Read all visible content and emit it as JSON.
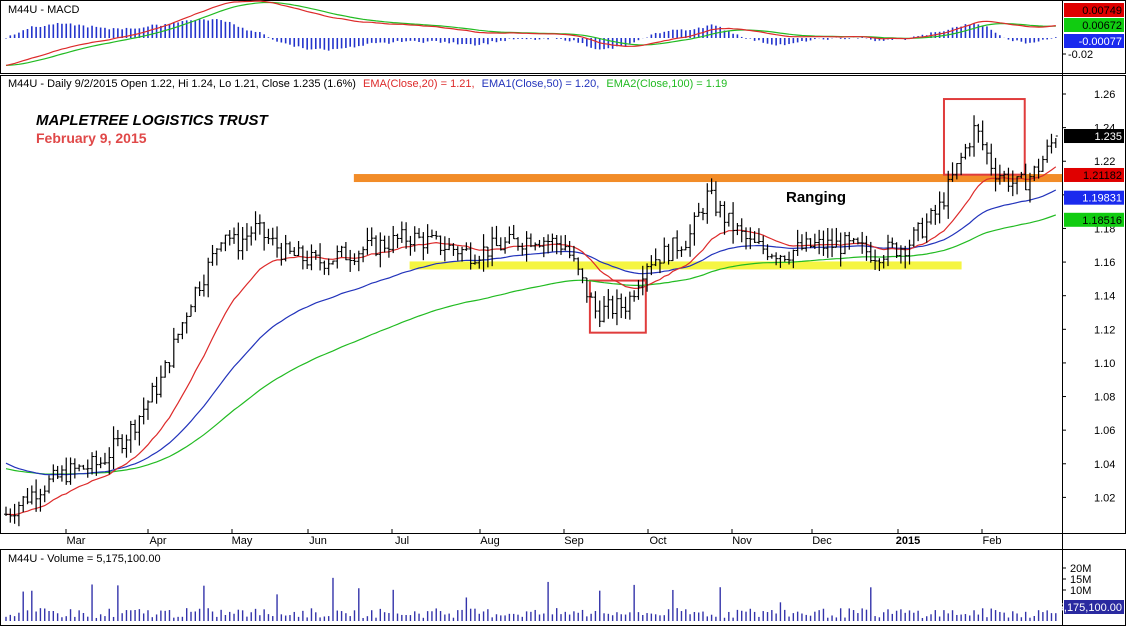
{
  "colors": {
    "bg": "#ffffff",
    "panel_border": "#000000",
    "price_bar": "#000000",
    "ema20": "#dd2a2a",
    "ema50": "#2233bb",
    "ema100": "#22bb22",
    "macd_hist": "#2233cc",
    "macd_line": "#dd2a2a",
    "signal_line": "#22bb22",
    "resistance": "#f28c28",
    "support": "#f5f542",
    "box": "#e03c3c",
    "volume": "#3333aa",
    "tag_red": "#e00000",
    "tag_green": "#11cc11",
    "tag_blue": "#1a2aee",
    "tag_black": "#000000",
    "tag_vol": "#2a2aa0"
  },
  "macd_panel": {
    "header": "M44U - MACD",
    "tags": [
      "0.00749",
      "0.00672",
      "-0.00077"
    ],
    "ticks": [
      "-0.02"
    ]
  },
  "price_panel": {
    "header_black": "M44U - Daily 9/2/2015 Open 1.22, Hi 1.24, Lo 1.21, Close 1.235 (1.6%)",
    "header_ema20": "EMA(Close,20) = 1.21,",
    "header_ema50": "EMA1(Close,50) = 1.20,",
    "header_ema100": "EMA2(Close,100) = 1.19",
    "title": "MAPLETREE LOGISTICS TRUST",
    "subtitle": "February 9, 2015",
    "annotation": "Ranging",
    "tags": {
      "close": "1.235",
      "ema20": "1.21182",
      "ema50": "1.19831",
      "ema100": "1.18516"
    }
  },
  "volume_panel": {
    "header": "M44U - Volume = 5,175,100.00",
    "ticks": [
      "20M",
      "15M",
      "10M"
    ],
    "tag": "5,175,100.00"
  },
  "chart_data": {
    "type": "line",
    "title": "MAPLETREE LOGISTICS TRUST",
    "subtitle": "February 9, 2015",
    "x_months": [
      "Mar",
      "Apr",
      "May",
      "Jun",
      "Jul",
      "Aug",
      "Sep",
      "Oct",
      "Nov",
      "Dec",
      "2015",
      "Feb"
    ],
    "ylim": [
      1.0,
      1.26
    ],
    "y_ticks": [
      "1.26",
      "1.24",
      "1.22",
      "1.20",
      "1.18",
      "1.16",
      "1.14",
      "1.12",
      "1.10",
      "1.08",
      "1.06",
      "1.04",
      "1.02"
    ],
    "price_anchors": [
      [
        0,
        1.01
      ],
      [
        0.5,
        1.025
      ],
      [
        1,
        1.035
      ],
      [
        1.5,
        1.04
      ],
      [
        2,
        1.06
      ],
      [
        2.5,
        1.09
      ],
      [
        3,
        1.14
      ],
      [
        3.3,
        1.16
      ],
      [
        3.5,
        1.18
      ],
      [
        3.7,
        1.17
      ],
      [
        4,
        1.18
      ],
      [
        4.5,
        1.165
      ],
      [
        5,
        1.16
      ],
      [
        5.5,
        1.165
      ],
      [
        6,
        1.17
      ],
      [
        6.5,
        1.175
      ],
      [
        7,
        1.17
      ],
      [
        7.5,
        1.165
      ],
      [
        8,
        1.17
      ],
      [
        8.5,
        1.175
      ],
      [
        9,
        1.17
      ],
      [
        9.5,
        1.13
      ],
      [
        10,
        1.135
      ],
      [
        10.3,
        1.16
      ],
      [
        10.6,
        1.165
      ],
      [
        11,
        1.175
      ],
      [
        11.3,
        1.2
      ],
      [
        11.6,
        1.185
      ],
      [
        12,
        1.17
      ],
      [
        12.5,
        1.165
      ],
      [
        13,
        1.17
      ],
      [
        13.5,
        1.17
      ],
      [
        14,
        1.165
      ],
      [
        14.5,
        1.17
      ],
      [
        15,
        1.19
      ],
      [
        15.3,
        1.215
      ],
      [
        15.6,
        1.24
      ],
      [
        15.9,
        1.215
      ],
      [
        16.3,
        1.205
      ],
      [
        16.6,
        1.215
      ],
      [
        16.9,
        1.235
      ]
    ],
    "series": [
      {
        "name": "EMA(Close,20)",
        "last": 1.21182
      },
      {
        "name": "EMA1(Close,50)",
        "last": 1.19831
      },
      {
        "name": "EMA2(Close,100)",
        "last": 1.18516
      }
    ],
    "last_close": 1.235,
    "resistance_level": 1.21,
    "support_level": 1.158,
    "boxes": [
      {
        "x0": 9.4,
        "x1": 10.3,
        "y0": 1.118,
        "y1": 1.149
      },
      {
        "x0": 15.1,
        "x1": 16.4,
        "y0": 1.212,
        "y1": 1.257
      }
    ],
    "volume_note": "Volume = 5,175,100.00"
  }
}
